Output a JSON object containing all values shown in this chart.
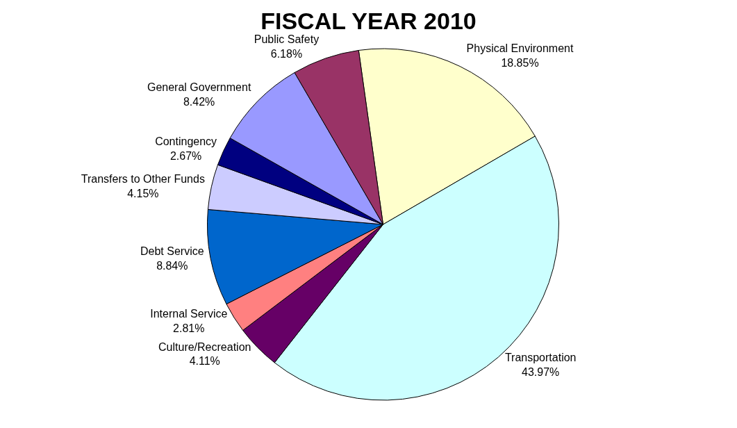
{
  "chart_data": {
    "type": "pie",
    "title": "FISCAL YEAR 2010",
    "categories": [
      "Physical Environment",
      "Transportation",
      "Culture/Recreation",
      "Internal Service",
      "Debt Service",
      "Transfers to Other Funds",
      "Contingency",
      "General Government",
      "Public Safety"
    ],
    "values": [
      18.85,
      43.97,
      4.11,
      2.81,
      8.84,
      4.15,
      2.67,
      8.42,
      6.18
    ],
    "value_labels": [
      "18.85%",
      "43.97%",
      "4.11%",
      "2.81%",
      "8.84%",
      "4.15%",
      "2.67%",
      "8.42%",
      "6.18%"
    ],
    "colors": [
      "#ffffcc",
      "#ccffff",
      "#660066",
      "#ff8080",
      "#0066cc",
      "#ccccff",
      "#000080",
      "#9999ff",
      "#993366"
    ],
    "legend": false
  }
}
